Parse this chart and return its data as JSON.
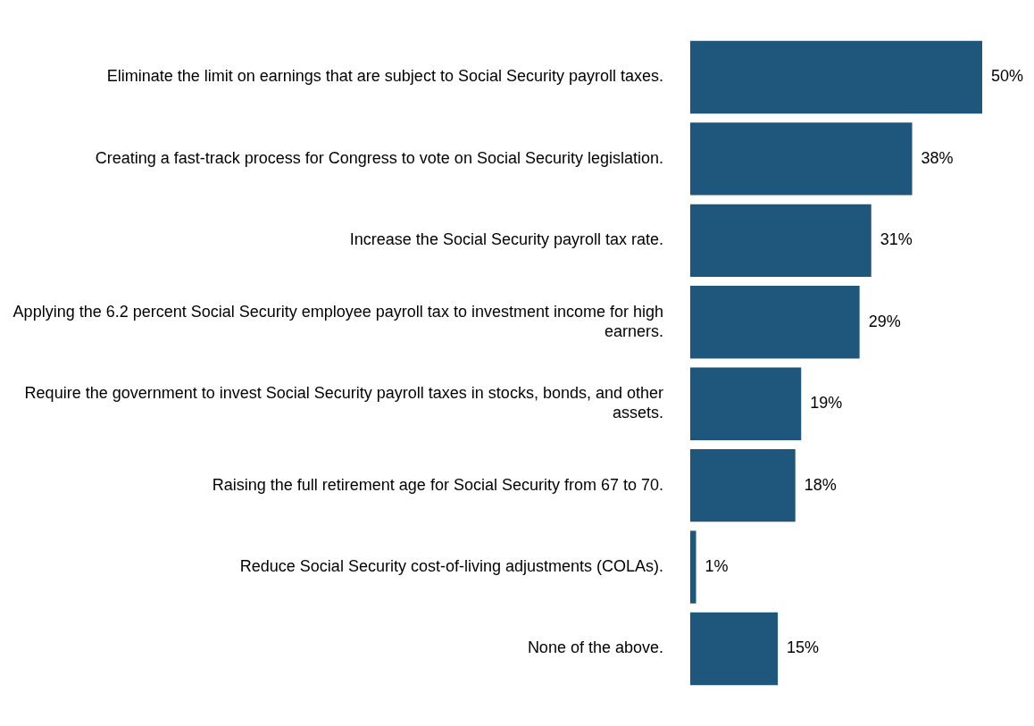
{
  "chart_data": {
    "type": "bar",
    "orientation": "horizontal",
    "categories": [
      "Eliminate the limit on earnings that are subject to Social Security payroll taxes.",
      "Creating a fast-track process for Congress to vote on Social Security legislation.",
      "Increase the Social Security payroll tax rate.",
      "Applying the 6.2 percent Social Security employee payroll tax to investment income for high earners.",
      "Require the government to invest Social Security payroll taxes in stocks, bonds, and other assets.",
      "Raising the full retirement age for Social Security from 67 to 70.",
      "Reduce Social Security cost-of-living adjustments (COLAs).",
      "None of the above."
    ],
    "values": [
      50,
      38,
      31,
      29,
      19,
      18,
      1,
      15
    ],
    "value_labels": [
      "50%",
      "38%",
      "31%",
      "29%",
      "19%",
      "18%",
      "1%",
      "15%"
    ],
    "color": "#1f567c",
    "grid": false,
    "legend": false
  }
}
